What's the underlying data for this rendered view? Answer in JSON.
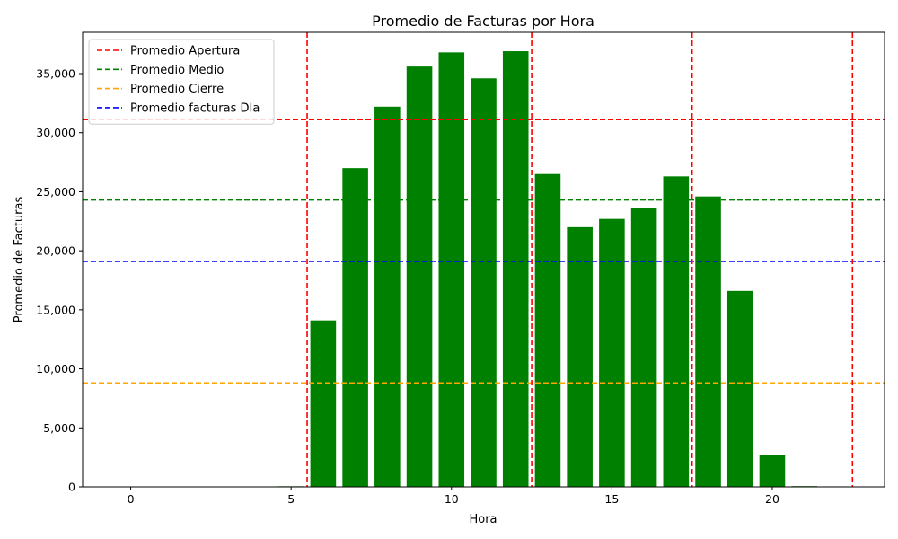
{
  "chart_data": {
    "type": "bar",
    "title": "Promedio de Facturas por Hora",
    "xlabel": "Hora",
    "ylabel": "Promedio de Facturas",
    "xlim": [
      -1.5,
      23.5
    ],
    "ylim": [
      0,
      38500
    ],
    "xticks": [
      0,
      5,
      10,
      15,
      20
    ],
    "yticks": [
      0,
      5000,
      10000,
      15000,
      20000,
      25000,
      30000,
      35000
    ],
    "ytick_labels": [
      "0",
      "5,000",
      "10,000",
      "15,000",
      "20,000",
      "25,000",
      "30,000",
      "35,000"
    ],
    "bar_color": "#008000",
    "x": [
      5,
      6,
      7,
      8,
      9,
      10,
      11,
      12,
      13,
      14,
      15,
      16,
      17,
      18,
      19,
      20,
      21,
      22
    ],
    "values": [
      50,
      14100,
      27000,
      32200,
      35600,
      36800,
      34600,
      36900,
      26500,
      22000,
      22700,
      23600,
      26300,
      24600,
      16600,
      2700,
      60,
      40
    ],
    "hlines": [
      {
        "name": "Promedio Apertura",
        "y": 31100,
        "color": "#ff0000"
      },
      {
        "name": "Promedio Medio",
        "y": 24300,
        "color": "#008000"
      },
      {
        "name": "Promedio Cierre",
        "y": 8800,
        "color": "#ffa500"
      },
      {
        "name": "Promedio facturas DIa",
        "y": 19100,
        "color": "#0000ff"
      }
    ],
    "vlines": [
      5.5,
      12.5,
      17.5,
      22.5
    ],
    "vline_color": "#ff0000",
    "legend_position": "upper-left",
    "grid": false
  }
}
